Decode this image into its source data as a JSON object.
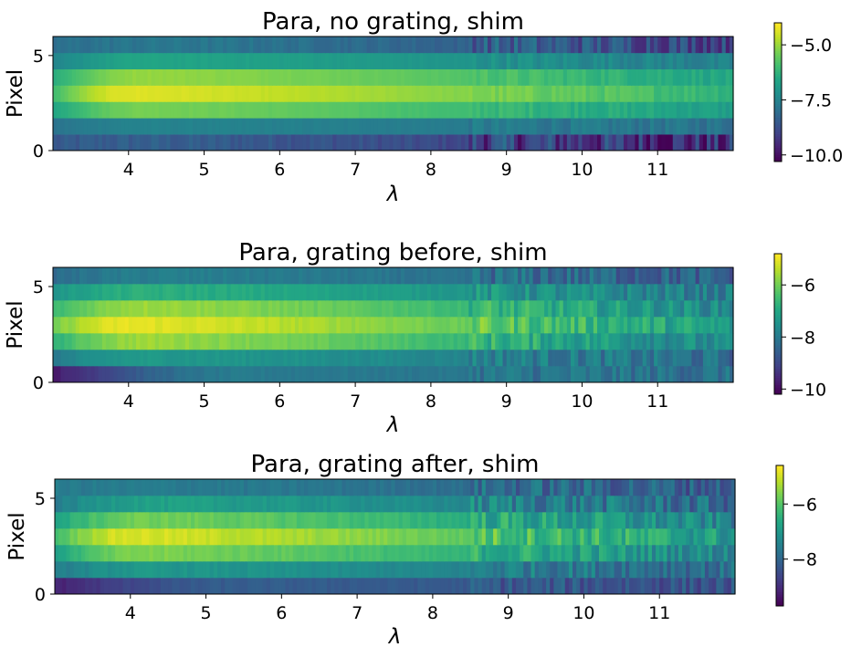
{
  "chart_data": [
    {
      "type": "heatmap",
      "title": "Para, no grating, shim",
      "xlabel": "λ",
      "ylabel": "Pixel",
      "xlim": [
        3.0,
        12.0
      ],
      "ylim": [
        0,
        6
      ],
      "xticks": [
        "4",
        "5",
        "6",
        "7",
        "8",
        "9",
        "10",
        "11"
      ],
      "yticks": [
        "0",
        "5"
      ],
      "rows": [
        {
          "pixel": 0,
          "start": -8.6,
          "peak_lambda": 4.2,
          "peak": -8.4,
          "end": -9.6,
          "noise": 0.7
        },
        {
          "pixel": 1,
          "start": -7.9,
          "peak_lambda": 4.2,
          "peak": -7.5,
          "end": -7.9,
          "noise": 0.2
        },
        {
          "pixel": 2,
          "start": -6.6,
          "peak_lambda": 4.2,
          "peak": -5.3,
          "end": -6.8,
          "noise": 0.15
        },
        {
          "pixel": 3,
          "start": -6.0,
          "peak_lambda": 4.0,
          "peak": -4.3,
          "end": -6.2,
          "noise": 0.15
        },
        {
          "pixel": 4,
          "start": -6.4,
          "peak_lambda": 4.2,
          "peak": -5.0,
          "end": -6.6,
          "noise": 0.15
        },
        {
          "pixel": 5,
          "start": -7.5,
          "peak_lambda": 4.2,
          "peak": -6.6,
          "end": -7.6,
          "noise": 0.2
        },
        {
          "pixel": 6,
          "start": -8.0,
          "peak_lambda": 4.5,
          "peak": -7.8,
          "end": -9.0,
          "noise": 0.5
        }
      ],
      "colorbar": {
        "vmin": -10.3,
        "vmax": -4.0,
        "ticks": [
          -10.0,
          -7.5,
          -5.0
        ],
        "tick_labels": [
          "−10.0",
          "−7.5",
          "−5.0"
        ]
      },
      "colormap": "viridis"
    },
    {
      "type": "heatmap",
      "title": "Para, grating before, shim",
      "xlabel": "λ",
      "ylabel": "Pixel",
      "xlim": [
        3.0,
        12.0
      ],
      "ylim": [
        0,
        6
      ],
      "xticks": [
        "4",
        "5",
        "6",
        "7",
        "8",
        "9",
        "10",
        "11"
      ],
      "yticks": [
        "0",
        "5"
      ],
      "rows": [
        {
          "pixel": 0,
          "start": -9.8,
          "peak_lambda": 5.5,
          "peak": -8.0,
          "end": -8.2,
          "noise": 0.3
        },
        {
          "pixel": 1,
          "start": -8.0,
          "peak_lambda": 4.2,
          "peak": -7.3,
          "end": -8.3,
          "noise": 0.35
        },
        {
          "pixel": 2,
          "start": -6.8,
          "peak_lambda": 4.2,
          "peak": -5.6,
          "end": -7.8,
          "noise": 0.35
        },
        {
          "pixel": 3,
          "start": -6.0,
          "peak_lambda": 4.0,
          "peak": -5.0,
          "end": -7.3,
          "noise": 0.35
        },
        {
          "pixel": 4,
          "start": -6.6,
          "peak_lambda": 4.2,
          "peak": -5.6,
          "end": -7.7,
          "noise": 0.35
        },
        {
          "pixel": 5,
          "start": -7.4,
          "peak_lambda": 4.2,
          "peak": -6.8,
          "end": -8.0,
          "noise": 0.35
        },
        {
          "pixel": 6,
          "start": -8.3,
          "peak_lambda": 4.5,
          "peak": -7.9,
          "end": -8.6,
          "noise": 0.4
        }
      ],
      "colorbar": {
        "vmin": -10.2,
        "vmax": -4.8,
        "ticks": [
          -10,
          -8,
          -6
        ],
        "tick_labels": [
          "−10",
          "−8",
          "−6"
        ]
      },
      "colormap": "viridis"
    },
    {
      "type": "heatmap",
      "title": "Para, grating after, shim",
      "xlabel": "λ",
      "ylabel": "Pixel",
      "xlim": [
        3.0,
        12.0
      ],
      "ylim": [
        0,
        6
      ],
      "xticks": [
        "4",
        "5",
        "6",
        "7",
        "8",
        "9",
        "10",
        "11"
      ],
      "yticks": [
        "0",
        "5"
      ],
      "rows": [
        {
          "pixel": 0,
          "start": -9.2,
          "peak_lambda": 5.5,
          "peak": -8.2,
          "end": -8.4,
          "noise": 0.3
        },
        {
          "pixel": 1,
          "start": -7.6,
          "peak_lambda": 4.2,
          "peak": -7.0,
          "end": -7.9,
          "noise": 0.35
        },
        {
          "pixel": 2,
          "start": -6.8,
          "peak_lambda": 4.2,
          "peak": -5.6,
          "end": -7.4,
          "noise": 0.35
        },
        {
          "pixel": 3,
          "start": -6.2,
          "peak_lambda": 4.0,
          "peak": -4.9,
          "end": -7.0,
          "noise": 0.4
        },
        {
          "pixel": 4,
          "start": -6.8,
          "peak_lambda": 4.2,
          "peak": -5.7,
          "end": -7.5,
          "noise": 0.4
        },
        {
          "pixel": 5,
          "start": -7.6,
          "peak_lambda": 4.2,
          "peak": -6.8,
          "end": -8.0,
          "noise": 0.45
        },
        {
          "pixel": 6,
          "start": -7.6,
          "peak_lambda": 4.5,
          "peak": -7.6,
          "end": -8.2,
          "noise": 0.4
        }
      ],
      "colorbar": {
        "vmin": -9.7,
        "vmax": -4.6,
        "ticks": [
          -8,
          -6
        ],
        "tick_labels": [
          "−8",
          "−6"
        ]
      },
      "colormap": "viridis"
    }
  ]
}
